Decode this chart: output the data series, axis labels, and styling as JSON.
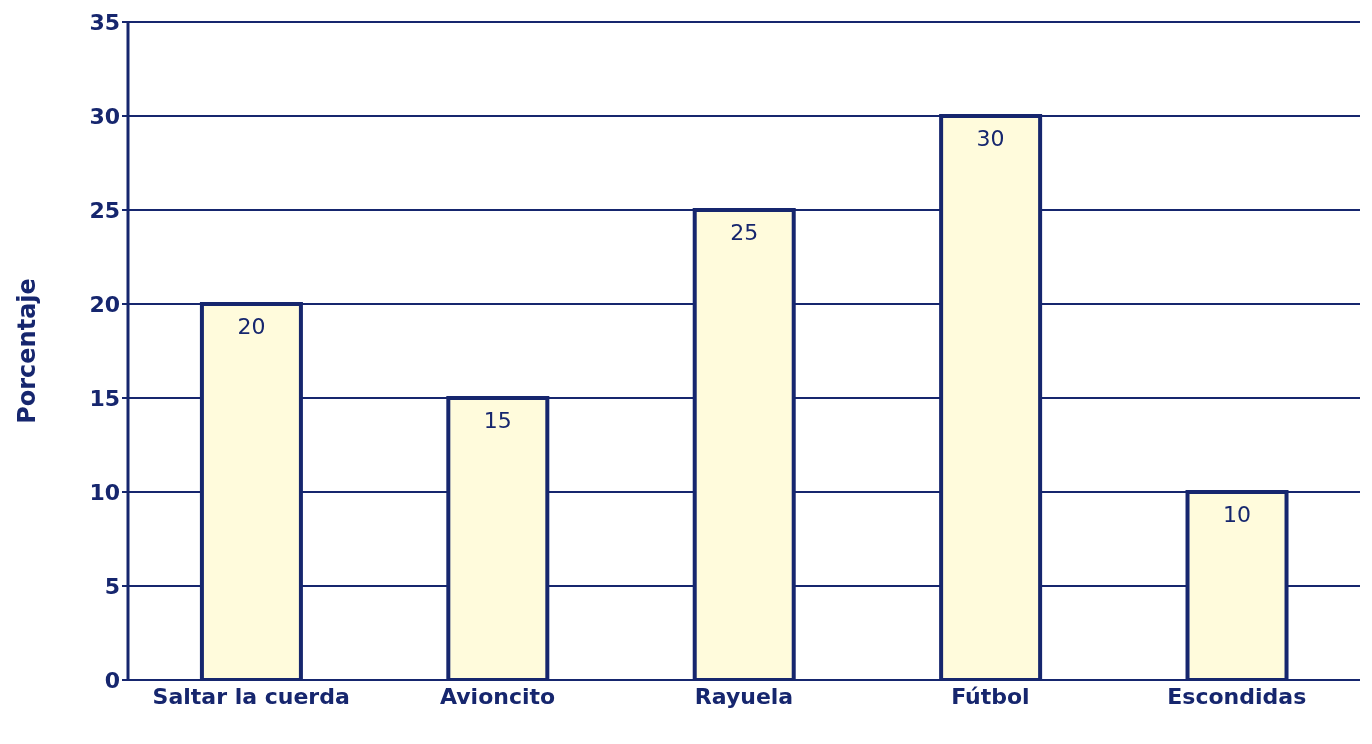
{
  "chart_data": {
    "type": "bar",
    "ylabel": "Porcentaje",
    "categories": [
      "Saltar la cuerda",
      "Avioncito",
      "Rayuela",
      "Fútbol",
      "Escondidas"
    ],
    "values": [
      20,
      15,
      25,
      30,
      10
    ],
    "color": "#fffbdc",
    "ylim": [
      0,
      35
    ],
    "yticks": [
      0,
      5,
      10,
      15,
      20,
      25,
      30,
      35
    ],
    "grid": "y",
    "data_labels": true
  }
}
